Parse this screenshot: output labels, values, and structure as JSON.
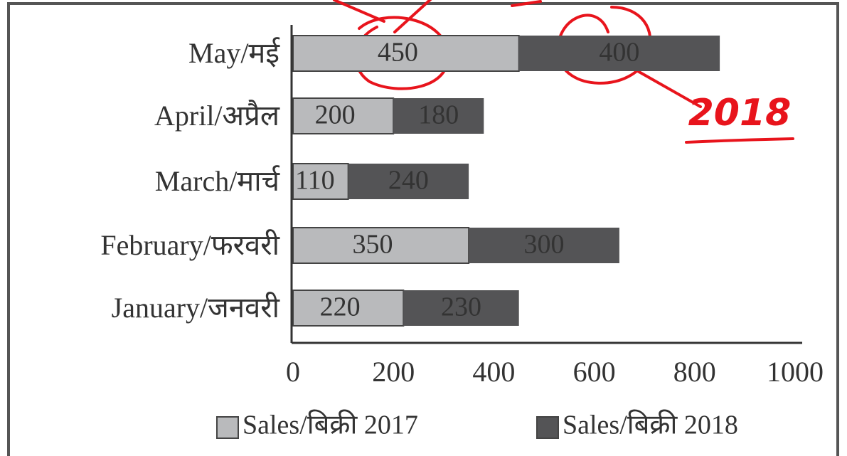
{
  "chart_data": {
    "type": "bar",
    "orientation": "horizontal",
    "stacked": true,
    "categories": [
      "May/मई",
      "April/अप्रैल",
      "March/मार्च",
      "February/फरवरी",
      "January/जनवरी"
    ],
    "series": [
      {
        "name": "Sales/बिक्री 2017",
        "color": "#b9babc",
        "values": [
          450,
          200,
          110,
          350,
          220
        ]
      },
      {
        "name": "Sales/बिक्री 2018",
        "color": "#545456",
        "values": [
          400,
          180,
          240,
          300,
          230
        ]
      }
    ],
    "xlim": [
      0,
      1000
    ],
    "xticks": [
      0,
      200,
      400,
      600,
      800,
      1000
    ],
    "annotation": "2018"
  }
}
